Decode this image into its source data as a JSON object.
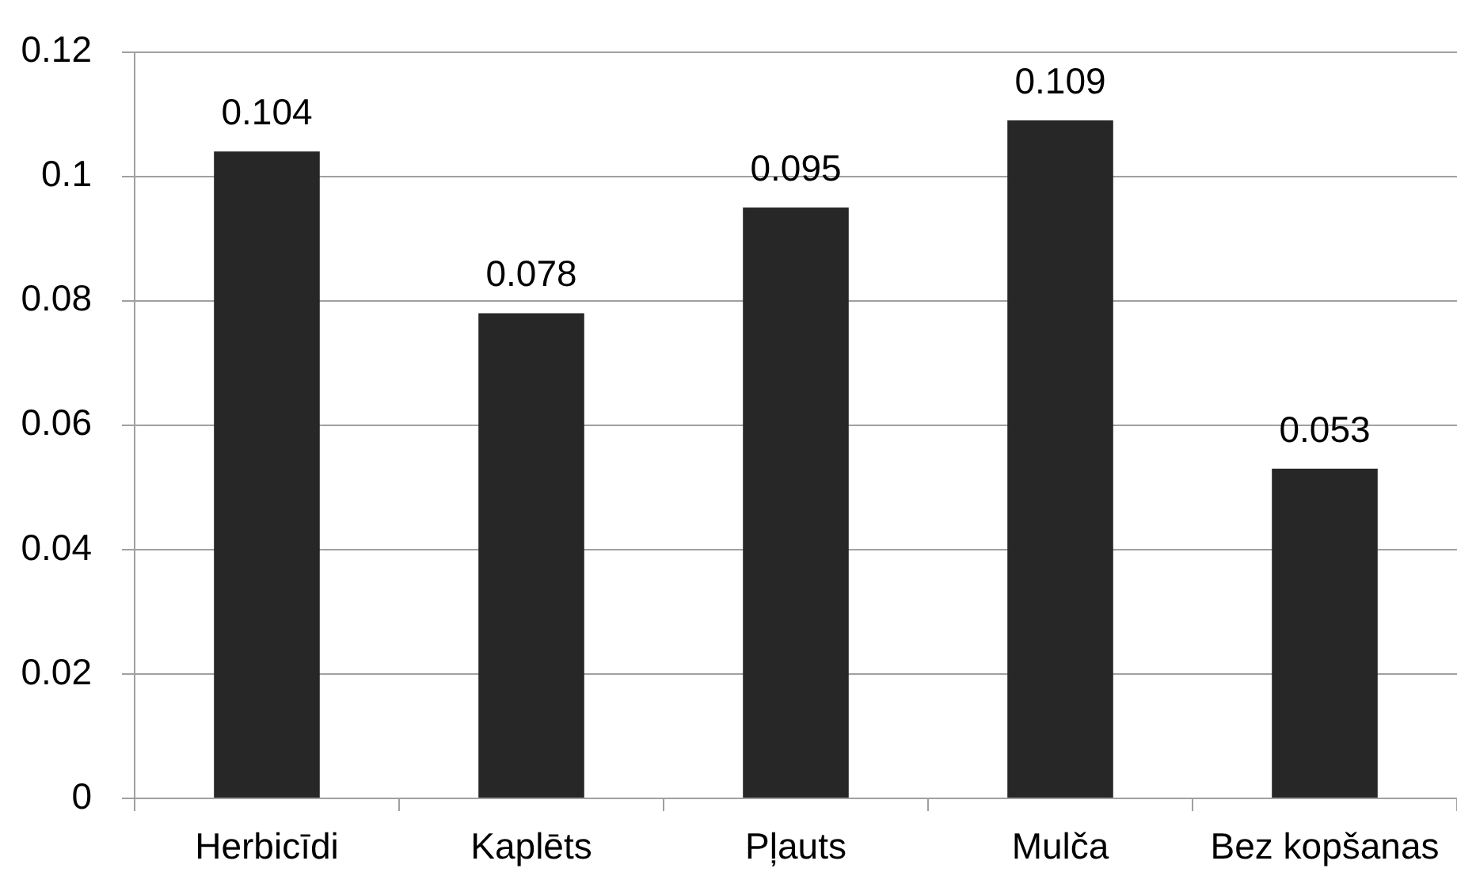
{
  "chart_data": {
    "type": "bar",
    "categories": [
      "Herbicīdi",
      "Kaplēts",
      "Pļauts",
      "Mulča",
      "Bez kopšanas"
    ],
    "values": [
      0.104,
      0.078,
      0.095,
      0.109,
      0.053
    ],
    "color": "#272727",
    "ylim": [
      0,
      0.12
    ],
    "yticks": [
      0,
      0.02,
      0.04,
      0.06,
      0.08,
      0.1,
      0.12
    ],
    "grid": "y",
    "data_labels": true
  }
}
